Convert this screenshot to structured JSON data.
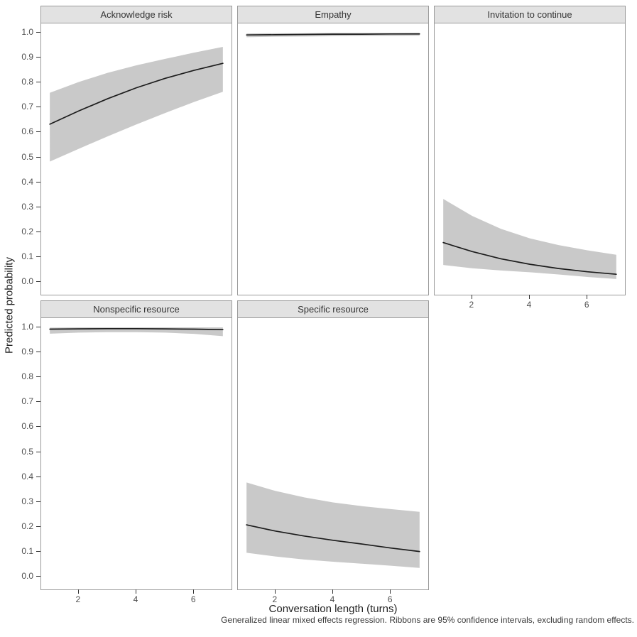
{
  "figure": {
    "y_axis_title": "Predicted probability",
    "x_axis_title": "Conversation length (turns)",
    "caption": "Generalized linear mixed effects regression. Ribbons are 95% confidence intervals, excluding random effects."
  },
  "colors": {
    "ribbon": "#c9c9c9",
    "line": "#1c1c1c",
    "strip_background": "#e2e2e2",
    "panel_border": "#9a9a9a",
    "axis_text": "#4f4f4f",
    "title_text": "#222222"
  },
  "chart_data": {
    "type": "line",
    "title": "",
    "xlabel": "Conversation length (turns)",
    "ylabel": "Predicted probability",
    "xlim": [
      1,
      7
    ],
    "ylim": [
      0,
      1
    ],
    "x_ticks": [
      2,
      4,
      6
    ],
    "y_ticks": [
      "0.0",
      "0.1",
      "0.2",
      "0.3",
      "0.4",
      "0.5",
      "0.6",
      "0.7",
      "0.8",
      "0.9",
      "1.0"
    ],
    "grid": false,
    "legend": "none",
    "facet_columns": 3,
    "x": [
      1,
      2,
      3,
      4,
      5,
      6,
      7
    ],
    "facets": [
      {
        "label": "Acknowledge risk",
        "line": [
          0.63,
          0.683,
          0.732,
          0.776,
          0.814,
          0.846,
          0.874
        ],
        "lower": [
          0.48,
          0.531,
          0.581,
          0.629,
          0.675,
          0.719,
          0.76
        ],
        "upper": [
          0.756,
          0.799,
          0.836,
          0.866,
          0.892,
          0.917,
          0.94
        ]
      },
      {
        "label": "Empathy",
        "line": [
          0.988,
          0.989,
          0.99,
          0.991,
          0.991,
          0.992,
          0.992
        ],
        "lower": [
          0.979,
          0.981,
          0.982,
          0.983,
          0.984,
          0.984,
          0.985
        ],
        "upper": [
          0.994,
          0.995,
          0.995,
          0.996,
          0.996,
          0.996,
          0.997
        ]
      },
      {
        "label": "Invitation to continue",
        "line": [
          0.155,
          0.119,
          0.09,
          0.068,
          0.051,
          0.038,
          0.028
        ],
        "lower": [
          0.065,
          0.052,
          0.043,
          0.036,
          0.027,
          0.017,
          0.009
        ],
        "upper": [
          0.33,
          0.262,
          0.21,
          0.172,
          0.145,
          0.124,
          0.106
        ]
      },
      {
        "label": "Nonspecific resource",
        "line": [
          0.99,
          0.991,
          0.992,
          0.992,
          0.991,
          0.99,
          0.988
        ],
        "lower": [
          0.972,
          0.976,
          0.978,
          0.978,
          0.976,
          0.971,
          0.962
        ],
        "upper": [
          0.996,
          0.997,
          0.997,
          0.997,
          0.997,
          0.997,
          0.997
        ]
      },
      {
        "label": "Specific resource",
        "line": [
          0.205,
          0.18,
          0.16,
          0.143,
          0.128,
          0.112,
          0.098
        ],
        "lower": [
          0.093,
          0.078,
          0.066,
          0.057,
          0.049,
          0.041,
          0.032
        ],
        "upper": [
          0.375,
          0.341,
          0.315,
          0.295,
          0.28,
          0.268,
          0.257
        ]
      }
    ]
  }
}
